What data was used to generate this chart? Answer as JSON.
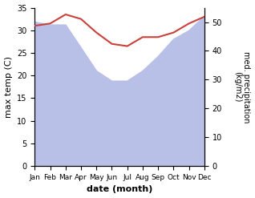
{
  "months": [
    "Jan",
    "Feb",
    "Mar",
    "Apr",
    "May",
    "Jun",
    "Jul",
    "Aug",
    "Sep",
    "Oct",
    "Nov",
    "Dec"
  ],
  "max_temp": [
    31.0,
    31.5,
    33.5,
    32.5,
    29.5,
    27.0,
    26.5,
    28.5,
    28.5,
    29.5,
    31.5,
    33.0
  ],
  "precipitation": [
    50.0,
    49.0,
    49.0,
    41.0,
    33.0,
    29.5,
    29.5,
    33.0,
    38.0,
    44.0,
    47.0,
    52.0
  ],
  "temp_color": "#c9413a",
  "precip_fill_color": "#b8c0e8",
  "temp_ylim": [
    0,
    35
  ],
  "precip_ylim": [
    0,
    55
  ],
  "temp_yticks": [
    0,
    5,
    10,
    15,
    20,
    25,
    30,
    35
  ],
  "precip_yticks": [
    0,
    10,
    20,
    30,
    40,
    50
  ],
  "xlabel": "date (month)",
  "ylabel_left": "max temp (C)",
  "ylabel_right": "med. precipitation\n(kg/m2)",
  "title": ""
}
